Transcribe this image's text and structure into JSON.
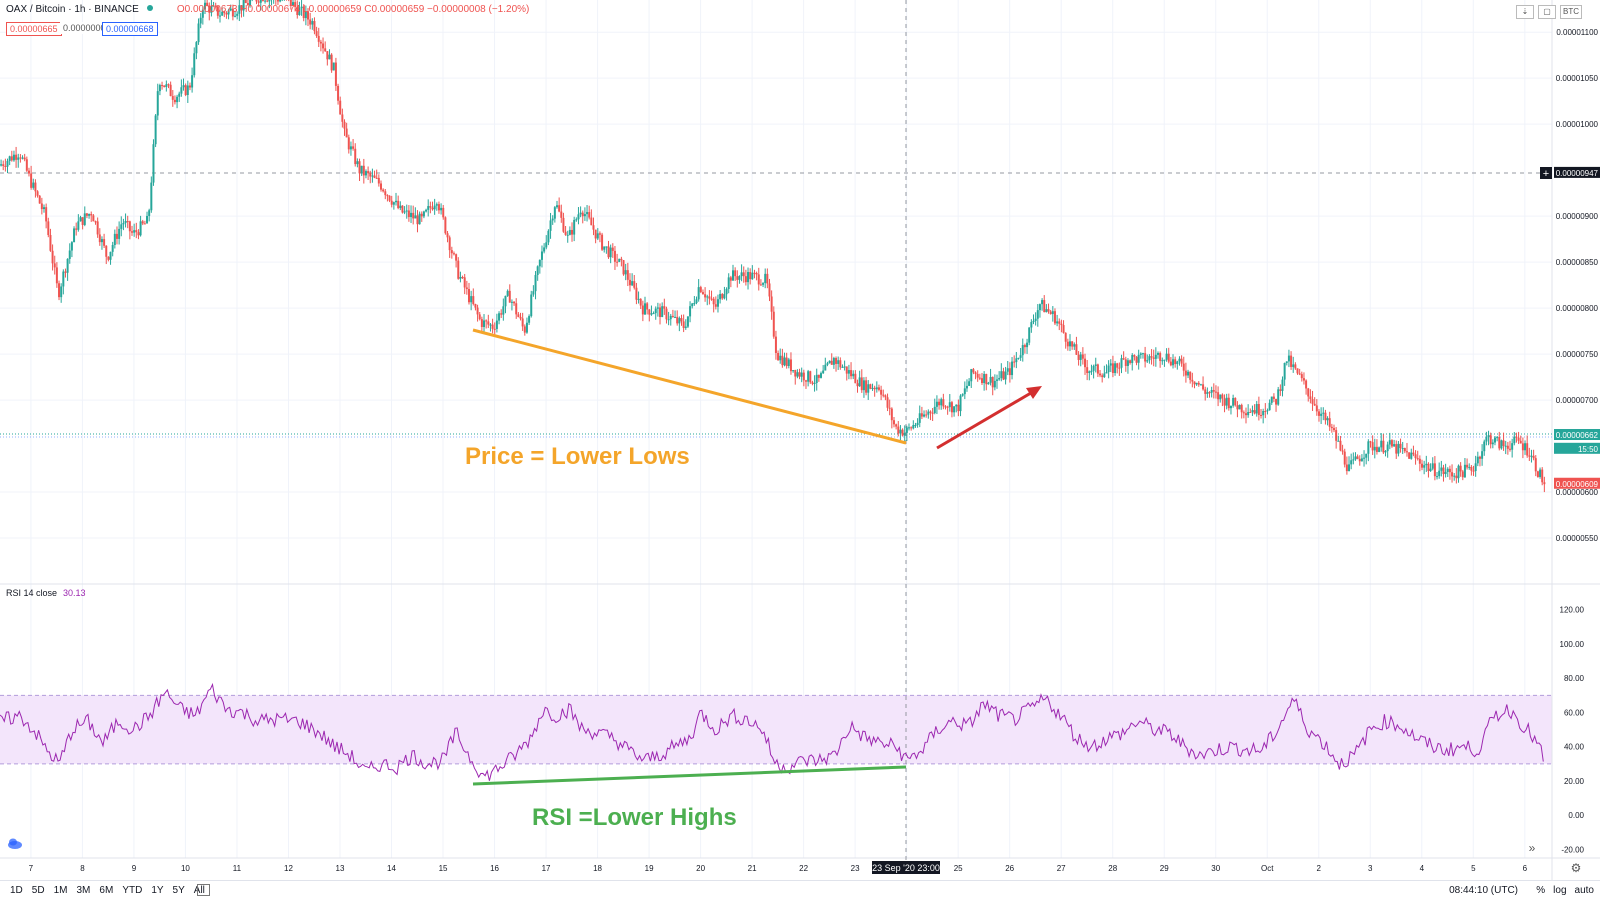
{
  "header": {
    "symbol": "OAX / Bitcoin · 1h · BINANCE",
    "ohlc": "O0.00000673 H0.00000674 L0.00000659 C0.00000659 −0.00000008 (−1.20%)",
    "bid": "0.00000665",
    "spread": "0.00000003",
    "ask": "0.00000668",
    "buttons": [
      "⇣",
      "▢",
      "BTC"
    ]
  },
  "colors": {
    "up": "#26a69a",
    "down": "#ef5350",
    "rsi_line": "#9c27b0",
    "rsi_band": "#f3e5fb",
    "annotation_price": "#f4a52a",
    "annotation_rsi": "#4caf50",
    "arrow": "#d32f2f",
    "grid": "#f0f3fa",
    "axis_text": "#131722"
  },
  "annotations": {
    "price_text": "Price = Lower Lows",
    "rsi_text": "RSI =Lower Highs"
  },
  "rsi_panel": {
    "label": "RSI 14 close",
    "value": "30.13"
  },
  "bottom": {
    "ranges": [
      "1D",
      "5D",
      "1M",
      "3M",
      "6M",
      "YTD",
      "1Y",
      "5Y",
      "All"
    ],
    "time": "08:44:10 (UTC)",
    "options": [
      "%",
      "log",
      "auto"
    ]
  },
  "chart_data": [
    {
      "type": "candlestick",
      "title": "OAX / Bitcoin · 1h · BINANCE",
      "x_tick_labels": [
        "7",
        "8",
        "9",
        "10",
        "11",
        "12",
        "13",
        "14",
        "15",
        "16",
        "17",
        "18",
        "19",
        "20",
        "21",
        "22",
        "23",
        "24",
        "25",
        "26",
        "27",
        "28",
        "29",
        "30",
        "Oct",
        "2",
        "3",
        "4",
        "5",
        "6"
      ],
      "x_tick_positions_days": [
        7,
        8,
        9,
        10,
        11,
        12,
        13,
        14,
        15,
        16,
        17,
        18,
        19,
        20,
        21,
        22,
        23,
        24,
        25,
        26,
        27,
        28,
        29,
        30,
        31,
        32,
        33,
        34,
        35,
        36
      ],
      "crosshair_label": "23 Sep '20   23:00",
      "y_tick_labels": [
        "0.00001100",
        "0.00001050",
        "0.00001000",
        "0.00000900",
        "0.00000850",
        "0.00000800",
        "0.00000750",
        "0.00000700",
        "0.00000600",
        "0.00000550"
      ],
      "y_ticks": [
        1.1e-05,
        1.05e-05,
        1e-05,
        9e-06,
        8.5e-06,
        8e-06,
        7.5e-06,
        7e-06,
        6e-06,
        5.5e-06
      ],
      "ylim": [
        5e-06,
        1.135e-05
      ],
      "price_labels": [
        {
          "label": "0.00000947",
          "value": 9.47e-06,
          "color": "#131722"
        },
        {
          "label": "0.00000662",
          "value": 6.62e-06,
          "color": "#26a69a"
        },
        {
          "label": "15:50",
          "value": 6.47e-06,
          "color": "#26a69a"
        },
        {
          "label": "0.00000609",
          "value": 6.09e-06,
          "color": "#ef5350"
        }
      ],
      "price_path": [
        [
          6.4,
          9.55e-06
        ],
        [
          6.8,
          9.7e-06
        ],
        [
          7.0,
          9.4e-06
        ],
        [
          7.3,
          9e-06
        ],
        [
          7.55,
          8.15e-06
        ],
        [
          7.9,
          8.9e-06
        ],
        [
          8.2,
          9.05e-06
        ],
        [
          8.5,
          8.55e-06
        ],
        [
          8.8,
          8.95e-06
        ],
        [
          9.0,
          8.8e-06
        ],
        [
          9.3,
          8.95e-06
        ],
        [
          9.5,
          1.05e-05
        ],
        [
          9.8,
          1.03e-05
        ],
        [
          10.1,
          1.04e-05
        ],
        [
          10.35,
          1.13e-05
        ],
        [
          10.7,
          1.12e-05
        ],
        [
          11.0,
          1.125e-05
        ],
        [
          11.5,
          1.14e-05
        ],
        [
          12.0,
          1.135e-05
        ],
        [
          12.5,
          1.11e-05
        ],
        [
          12.9,
          1.06e-05
        ],
        [
          13.1,
          9.9e-06
        ],
        [
          13.4,
          9.5e-06
        ],
        [
          13.8,
          9.35e-06
        ],
        [
          14.2,
          9.05e-06
        ],
        [
          14.6,
          8.95e-06
        ],
        [
          14.9,
          9.2e-06
        ],
        [
          15.1,
          8.8e-06
        ],
        [
          15.3,
          8.4e-06
        ],
        [
          15.5,
          8.15e-06
        ],
        [
          15.75,
          7.85e-06
        ],
        [
          16.0,
          7.8e-06
        ],
        [
          16.3,
          8.15e-06
        ],
        [
          16.6,
          7.75e-06
        ],
        [
          16.9,
          8.5e-06
        ],
        [
          17.2,
          9.15e-06
        ],
        [
          17.45,
          8.75e-06
        ],
        [
          17.7,
          9.1e-06
        ],
        [
          18.1,
          8.7e-06
        ],
        [
          18.5,
          8.45e-06
        ],
        [
          18.9,
          8e-06
        ],
        [
          19.3,
          7.95e-06
        ],
        [
          19.7,
          7.8e-06
        ],
        [
          20.0,
          8.25e-06
        ],
        [
          20.3,
          8e-06
        ],
        [
          20.6,
          8.35e-06
        ],
        [
          21.0,
          8.35e-06
        ],
        [
          21.3,
          8.3e-06
        ],
        [
          21.5,
          7.5e-06
        ],
        [
          21.9,
          7.3e-06
        ],
        [
          22.3,
          7.2e-06
        ],
        [
          22.6,
          7.45e-06
        ],
        [
          22.9,
          7.3e-06
        ],
        [
          23.2,
          7.15e-06
        ],
        [
          23.5,
          7.15e-06
        ],
        [
          23.8,
          6.7e-06
        ],
        [
          24.0,
          6.65e-06
        ],
        [
          24.3,
          6.8e-06
        ],
        [
          24.7,
          7e-06
        ],
        [
          25.0,
          6.9e-06
        ],
        [
          25.3,
          7.3e-06
        ],
        [
          25.7,
          7.2e-06
        ],
        [
          26.0,
          7.3e-06
        ],
        [
          26.3,
          7.6e-06
        ],
        [
          26.6,
          8.05e-06
        ],
        [
          26.9,
          7.9e-06
        ],
        [
          27.2,
          7.6e-06
        ],
        [
          27.5,
          7.35e-06
        ],
        [
          27.9,
          7.3e-06
        ],
        [
          28.3,
          7.45e-06
        ],
        [
          28.7,
          7.45e-06
        ],
        [
          29.0,
          7.5e-06
        ],
        [
          29.4,
          7.35e-06
        ],
        [
          29.8,
          7.1e-06
        ],
        [
          30.2,
          7e-06
        ],
        [
          30.6,
          6.9e-06
        ],
        [
          30.9,
          6.9e-06
        ],
        [
          31.2,
          7e-06
        ],
        [
          31.4,
          7.45e-06
        ],
        [
          31.7,
          7.2e-06
        ],
        [
          32.0,
          6.9e-06
        ],
        [
          32.3,
          6.65e-06
        ],
        [
          32.6,
          6.25e-06
        ],
        [
          33.0,
          6.5e-06
        ],
        [
          33.4,
          6.5e-06
        ],
        [
          33.8,
          6.4e-06
        ],
        [
          34.2,
          6.25e-06
        ],
        [
          34.6,
          6.2e-06
        ],
        [
          35.0,
          6.25e-06
        ],
        [
          35.3,
          6.6e-06
        ],
        [
          35.6,
          6.5e-06
        ],
        [
          35.9,
          6.55e-06
        ],
        [
          36.1,
          6.45e-06
        ],
        [
          36.3,
          6.2e-06
        ],
        [
          36.4,
          6.09e-06
        ]
      ]
    },
    {
      "type": "line",
      "title": "RSI 14 close",
      "y_tick_labels": [
        "120.00",
        "100.00",
        "80.00",
        "60.00",
        "40.00",
        "20.00",
        "0.00",
        "-20.00"
      ],
      "y_ticks": [
        120,
        100,
        80,
        60,
        40,
        20,
        0,
        -20
      ],
      "ylim": [
        -25,
        135
      ],
      "band": [
        30,
        70
      ],
      "rsi_path": [
        [
          6.4,
          55
        ],
        [
          6.8,
          58
        ],
        [
          7.1,
          48
        ],
        [
          7.3,
          38
        ],
        [
          7.55,
          30
        ],
        [
          7.8,
          50
        ],
        [
          8.1,
          55
        ],
        [
          8.4,
          42
        ],
        [
          8.7,
          55
        ],
        [
          9.0,
          50
        ],
        [
          9.3,
          58
        ],
        [
          9.6,
          72
        ],
        [
          9.9,
          62
        ],
        [
          10.2,
          58
        ],
        [
          10.5,
          74
        ],
        [
          10.8,
          62
        ],
        [
          11.1,
          60
        ],
        [
          11.4,
          55
        ],
        [
          11.8,
          56
        ],
        [
          12.2,
          55
        ],
        [
          12.6,
          48
        ],
        [
          12.9,
          40
        ],
        [
          13.2,
          35
        ],
        [
          13.5,
          25
        ],
        [
          13.8,
          30
        ],
        [
          14.1,
          28
        ],
        [
          14.4,
          35
        ],
        [
          14.7,
          30
        ],
        [
          15.0,
          32
        ],
        [
          15.25,
          48
        ],
        [
          15.5,
          35
        ],
        [
          15.8,
          22
        ],
        [
          16.1,
          28
        ],
        [
          16.4,
          35
        ],
        [
          16.7,
          45
        ],
        [
          16.95,
          62
        ],
        [
          17.2,
          58
        ],
        [
          17.45,
          62
        ],
        [
          17.7,
          50
        ],
        [
          18.0,
          48
        ],
        [
          18.3,
          45
        ],
        [
          18.6,
          38
        ],
        [
          18.9,
          32
        ],
        [
          19.2,
          35
        ],
        [
          19.5,
          40
        ],
        [
          19.8,
          45
        ],
        [
          20.0,
          60
        ],
        [
          20.3,
          50
        ],
        [
          20.6,
          58
        ],
        [
          20.9,
          56
        ],
        [
          21.2,
          50
        ],
        [
          21.45,
          30
        ],
        [
          21.7,
          28
        ],
        [
          22.0,
          32
        ],
        [
          22.3,
          32
        ],
        [
          22.6,
          35
        ],
        [
          22.9,
          52
        ],
        [
          23.2,
          45
        ],
        [
          23.5,
          42
        ],
        [
          23.8,
          40
        ],
        [
          24.0,
          32
        ],
        [
          24.3,
          38
        ],
        [
          24.6,
          50
        ],
        [
          24.9,
          55
        ],
        [
          25.2,
          52
        ],
        [
          25.5,
          65
        ],
        [
          25.8,
          58
        ],
        [
          26.1,
          56
        ],
        [
          26.4,
          62
        ],
        [
          26.7,
          68
        ],
        [
          27.0,
          58
        ],
        [
          27.3,
          45
        ],
        [
          27.6,
          40
        ],
        [
          27.9,
          45
        ],
        [
          28.2,
          48
        ],
        [
          28.5,
          55
        ],
        [
          28.8,
          50
        ],
        [
          29.1,
          48
        ],
        [
          29.4,
          40
        ],
        [
          29.7,
          35
        ],
        [
          30.0,
          38
        ],
        [
          30.3,
          40
        ],
        [
          30.6,
          38
        ],
        [
          30.9,
          38
        ],
        [
          31.2,
          50
        ],
        [
          31.5,
          68
        ],
        [
          31.8,
          50
        ],
        [
          32.1,
          42
        ],
        [
          32.4,
          30
        ],
        [
          32.7,
          35
        ],
        [
          33.0,
          50
        ],
        [
          33.3,
          55
        ],
        [
          33.6,
          52
        ],
        [
          33.9,
          45
        ],
        [
          34.2,
          40
        ],
        [
          34.5,
          38
        ],
        [
          34.8,
          40
        ],
        [
          35.1,
          38
        ],
        [
          35.4,
          58
        ],
        [
          35.7,
          62
        ],
        [
          35.9,
          55
        ],
        [
          36.1,
          48
        ],
        [
          36.3,
          38
        ],
        [
          36.4,
          30
        ]
      ]
    }
  ]
}
